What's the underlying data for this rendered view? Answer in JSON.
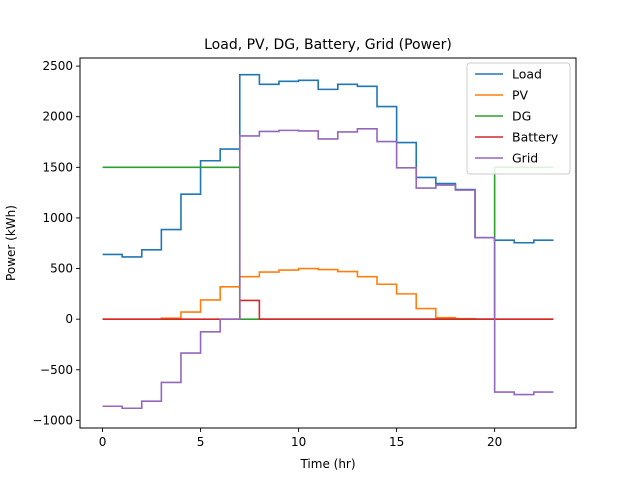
{
  "chart_data": {
    "type": "line",
    "step": "post",
    "title": "Load, PV, DG, Battery, Grid (Power)",
    "xlabel": "Time (hr)",
    "ylabel": "Power (kWh)",
    "xlim": [
      -1.15,
      24.15
    ],
    "ylim": [
      -1075,
      2580
    ],
    "xticks": [
      0,
      5,
      10,
      15,
      20
    ],
    "yticks": [
      -1000,
      -500,
      0,
      500,
      1000,
      1500,
      2000,
      2500
    ],
    "grid": false,
    "legend_position": "top-right",
    "x": [
      0,
      1,
      2,
      3,
      4,
      5,
      6,
      7,
      8,
      9,
      10,
      11,
      12,
      13,
      14,
      15,
      16,
      17,
      18,
      19,
      20,
      21,
      22,
      23
    ],
    "series": [
      {
        "name": "Load",
        "color": "#1f77b4",
        "values": [
          640,
          615,
          685,
          885,
          1235,
          1565,
          1680,
          2415,
          2320,
          2350,
          2360,
          2270,
          2320,
          2300,
          2100,
          1745,
          1400,
          1340,
          1280,
          805,
          780,
          755,
          780,
          780
        ]
      },
      {
        "name": "PV",
        "color": "#ff7f0e",
        "values": [
          0,
          0,
          0,
          10,
          70,
          190,
          320,
          420,
          465,
          485,
          500,
          490,
          470,
          420,
          345,
          250,
          105,
          15,
          5,
          0,
          0,
          0,
          0,
          0
        ]
      },
      {
        "name": "DG",
        "color": "#2ca02c",
        "values": [
          1500,
          1500,
          1500,
          1500,
          1500,
          1500,
          1500,
          0,
          0,
          0,
          0,
          0,
          0,
          0,
          0,
          0,
          0,
          0,
          0,
          0,
          1500,
          1500,
          1500,
          1500
        ]
      },
      {
        "name": "Battery",
        "color": "#d62728",
        "values": [
          0,
          0,
          0,
          0,
          0,
          0,
          0,
          185,
          0,
          0,
          0,
          0,
          0,
          0,
          0,
          0,
          0,
          0,
          0,
          0,
          0,
          0,
          0,
          0
        ]
      },
      {
        "name": "Grid",
        "color": "#9467bd",
        "values": [
          -860,
          -880,
          -810,
          -625,
          -335,
          -125,
          0,
          1810,
          1855,
          1865,
          1860,
          1780,
          1850,
          1880,
          1755,
          1495,
          1295,
          1325,
          1275,
          805,
          -720,
          -745,
          -720,
          -720
        ]
      }
    ]
  }
}
